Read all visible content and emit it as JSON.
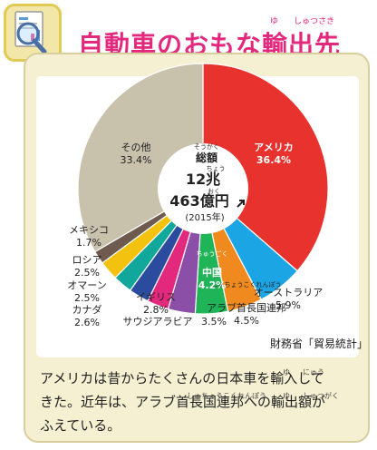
{
  "header": {
    "title": "自動車のおもな輸出先",
    "title_ruby": [
      "ゆ",
      "しゅつさき"
    ]
  },
  "chart_data": {
    "type": "pie",
    "title": "",
    "total": {
      "label": "総額",
      "label_ruby": "そうがく",
      "value_line1": "12兆",
      "value_line1_ruby": "ちょう",
      "value_line2": "463億円",
      "value_line2_ruby": "おく",
      "year": "(2015年)"
    },
    "slices": [
      {
        "name": "アメリカ",
        "value": 36.4,
        "label": "36.4%",
        "color": "#e8322e"
      },
      {
        "name": "オーストラリア",
        "value": 5.9,
        "label": "5.9%",
        "color": "#1ca5e4"
      },
      {
        "name": "アラブ首長国連邦",
        "value": 4.5,
        "label": "4.5%",
        "color": "#f08a1e",
        "ruby": "しゅちょうこくれんぽう"
      },
      {
        "name": "中国",
        "value": 4.2,
        "label": "4.2%",
        "color": "#1fb457",
        "ruby": "ちゅうごく"
      },
      {
        "name": "サウジアラビア",
        "value": 3.5,
        "label": "3.5%",
        "color": "#8c4fa8"
      },
      {
        "name": "イギリス",
        "value": 2.8,
        "label": "2.8%",
        "color": "#e3297e"
      },
      {
        "name": "カナダ",
        "value": 2.6,
        "label": "2.6%",
        "color": "#2b4c9e"
      },
      {
        "name": "オマーン",
        "value": 2.5,
        "label": "2.5%",
        "color": "#12a79b"
      },
      {
        "name": "ロシア",
        "value": 2.5,
        "label": "2.5%",
        "color": "#f2c20e"
      },
      {
        "name": "メキシコ",
        "value": 1.7,
        "label": "1.7%",
        "color": "#6f5a4f"
      },
      {
        "name": "その他",
        "value": 33.4,
        "label": "33.4%",
        "color": "#c8c1ac"
      }
    ],
    "source": "財務省「貿易統計」"
  },
  "caption": {
    "line1": "アメリカは昔からたくさんの日本車を輸入して",
    "line2": "きた。近年は、アラブ首長国連邦への輸出額が",
    "line3": "ふえている。",
    "ruby": [
      "ゆ",
      "にゅう",
      "しゅちょうこくれんぽう",
      "ゆ",
      "しゅつがく"
    ]
  },
  "icon": "magnifier-document-icon",
  "colors": {
    "title": "#e3297e",
    "card": "#f6f0d2",
    "card_border": "#d8cf9f"
  }
}
